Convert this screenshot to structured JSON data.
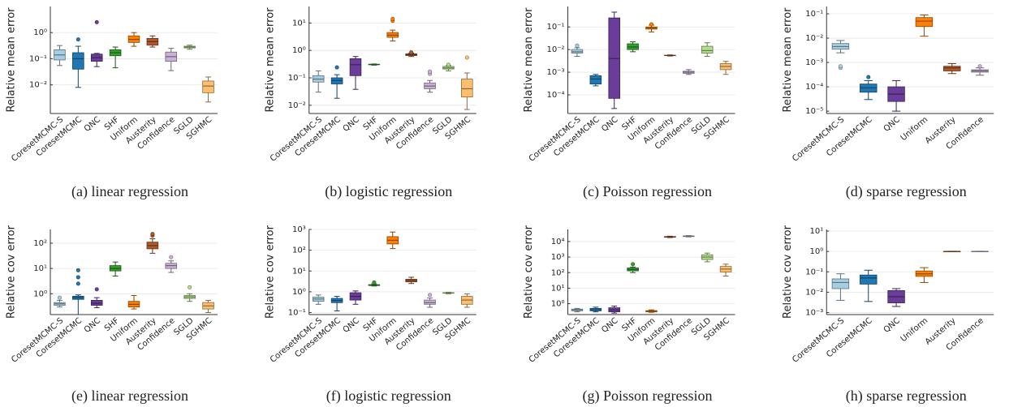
{
  "chart_data": [
    {
      "type": "box",
      "caption": "(a) linear regression",
      "ylabel": "Relative mean error",
      "log_y": true,
      "grid": true,
      "categories": [
        "CoresetMCMC-S",
        "CoresetMCMC",
        "QNC",
        "SHF",
        "Uniform",
        "Austerity",
        "Confidence",
        "SGLD",
        "SGHMC"
      ],
      "colors": [
        "#a6cee3",
        "#1f78b4",
        "#6a3d9a",
        "#33a02c",
        "#ff7f00",
        "#b15928",
        "#cab2d6",
        "#b2df8a",
        "#fdbf6f"
      ],
      "ylim": [
        0.0008,
        10
      ],
      "yticks": [
        {
          "value": 0.01,
          "label": "10⁻²"
        },
        {
          "value": 0.1,
          "label": "10⁻¹"
        },
        {
          "value": 1,
          "label": "10⁰"
        }
      ],
      "boxes": [
        {
          "whislo": 0.055,
          "q1": 0.09,
          "med": 0.14,
          "q3": 0.22,
          "whishi": 0.32,
          "fliers": []
        },
        {
          "whislo": 0.008,
          "q1": 0.04,
          "med": 0.1,
          "q3": 0.17,
          "whishi": 0.3,
          "fliers": [
            0.55
          ]
        },
        {
          "whislo": 0.05,
          "q1": 0.08,
          "med": 0.11,
          "q3": 0.15,
          "whishi": 0.16,
          "fliers": [
            2.5
          ]
        },
        {
          "whislo": 0.045,
          "q1": 0.13,
          "med": 0.17,
          "q3": 0.22,
          "whishi": 0.28,
          "fliers": []
        },
        {
          "whislo": 0.3,
          "q1": 0.42,
          "med": 0.55,
          "q3": 0.75,
          "whishi": 1.0,
          "fliers": []
        },
        {
          "whislo": 0.28,
          "q1": 0.33,
          "med": 0.45,
          "q3": 0.6,
          "whishi": 0.75,
          "fliers": []
        },
        {
          "whislo": 0.035,
          "q1": 0.08,
          "med": 0.12,
          "q3": 0.18,
          "whishi": 0.25,
          "fliers": []
        },
        {
          "whislo": 0.23,
          "q1": 0.26,
          "med": 0.28,
          "q3": 0.3,
          "whishi": 0.33,
          "fliers": []
        },
        {
          "whislo": 0.0022,
          "q1": 0.005,
          "med": 0.009,
          "q3": 0.014,
          "whishi": 0.02,
          "fliers": []
        }
      ]
    },
    {
      "type": "box",
      "caption": "(b) logistic regression",
      "ylabel": "Relative mean error",
      "log_y": true,
      "grid": true,
      "categories": [
        "CoresetMCMC-S",
        "CoresetMCMC",
        "QNC",
        "SHF",
        "Uniform",
        "Austerity",
        "Confidence",
        "SGLD",
        "SGHMC"
      ],
      "colors": [
        "#a6cee3",
        "#1f78b4",
        "#6a3d9a",
        "#33a02c",
        "#ff7f00",
        "#b15928",
        "#cab2d6",
        "#b2df8a",
        "#fdbf6f"
      ],
      "ylim": [
        0.005,
        40
      ],
      "yticks": [
        {
          "value": 0.01,
          "label": "10⁻²"
        },
        {
          "value": 0.1,
          "label": "10⁻¹"
        },
        {
          "value": 1,
          "label": "10⁰"
        },
        {
          "value": 10,
          "label": "10¹"
        }
      ],
      "boxes": [
        {
          "whislo": 0.03,
          "q1": 0.07,
          "med": 0.09,
          "q3": 0.12,
          "whishi": 0.18,
          "fliers": []
        },
        {
          "whislo": 0.018,
          "q1": 0.06,
          "med": 0.08,
          "q3": 0.1,
          "whishi": 0.13,
          "fliers": [
            0.24
          ]
        },
        {
          "whislo": 0.038,
          "q1": 0.12,
          "med": 0.3,
          "q3": 0.5,
          "whishi": 0.6,
          "fliers": []
        },
        {
          "whislo": 0.29,
          "q1": 0.3,
          "med": 0.31,
          "q3": 0.31,
          "whishi": 0.32,
          "fliers": []
        },
        {
          "whislo": 2.2,
          "q1": 3.0,
          "med": 3.6,
          "q3": 4.5,
          "whishi": 5.5,
          "fliers": [
            12,
            14
          ]
        },
        {
          "whislo": 0.6,
          "q1": 0.65,
          "med": 0.7,
          "q3": 0.75,
          "whishi": 0.8,
          "fliers": [
            0.85
          ]
        },
        {
          "whislo": 0.03,
          "q1": 0.04,
          "med": 0.05,
          "q3": 0.065,
          "whishi": 0.08,
          "fliers": [
            0.14,
            0.17
          ]
        },
        {
          "whislo": 0.18,
          "q1": 0.21,
          "med": 0.23,
          "q3": 0.26,
          "whishi": 0.28,
          "fliers": [
            0.3
          ]
        },
        {
          "whislo": 0.007,
          "q1": 0.02,
          "med": 0.04,
          "q3": 0.09,
          "whishi": 0.15,
          "fliers": [
            0.55
          ]
        }
      ]
    },
    {
      "type": "box",
      "caption": "(c) Poisson regression",
      "ylabel": "Relative mean error",
      "log_y": true,
      "grid": true,
      "categories": [
        "CoresetMCMC-S",
        "CoresetMCMC",
        "QNC",
        "SHF",
        "Uniform",
        "Austerity",
        "Confidence",
        "SGLD",
        "SGHMC"
      ],
      "colors": [
        "#a6cee3",
        "#1f78b4",
        "#6a3d9a",
        "#33a02c",
        "#ff7f00",
        "#b15928",
        "#cab2d6",
        "#b2df8a",
        "#fdbf6f"
      ],
      "ylim": [
        1.5e-05,
        0.8
      ],
      "yticks": [
        {
          "value": 0.0001,
          "label": "10⁻⁴"
        },
        {
          "value": 0.001,
          "label": "10⁻³"
        },
        {
          "value": 0.01,
          "label": "10⁻²"
        },
        {
          "value": 0.1,
          "label": "10⁻¹"
        }
      ],
      "boxes": [
        {
          "whislo": 0.005,
          "q1": 0.007,
          "med": 0.008,
          "q3": 0.01,
          "whishi": 0.012,
          "fliers": [
            0.015
          ]
        },
        {
          "whislo": 0.00025,
          "q1": 0.0003,
          "med": 0.0005,
          "q3": 0.0007,
          "whishi": 0.0008,
          "fliers": []
        },
        {
          "whislo": 2.5e-05,
          "q1": 7e-05,
          "med": 0.004,
          "q3": 0.25,
          "whishi": 0.45,
          "fliers": []
        },
        {
          "whislo": 0.008,
          "q1": 0.01,
          "med": 0.013,
          "q3": 0.018,
          "whishi": 0.022,
          "fliers": []
        },
        {
          "whislo": 0.06,
          "q1": 0.08,
          "med": 0.09,
          "q3": 0.1,
          "whishi": 0.12,
          "fliers": [
            0.13
          ]
        },
        {
          "whislo": 0.0052,
          "q1": 0.0054,
          "med": 0.0055,
          "q3": 0.0056,
          "whishi": 0.0058,
          "fliers": []
        },
        {
          "whislo": 0.0008,
          "q1": 0.0009,
          "med": 0.001,
          "q3": 0.0011,
          "whishi": 0.0013,
          "fliers": []
        },
        {
          "whislo": 0.005,
          "q1": 0.007,
          "med": 0.009,
          "q3": 0.014,
          "whishi": 0.02,
          "fliers": []
        },
        {
          "whislo": 0.0008,
          "q1": 0.0013,
          "med": 0.0018,
          "q3": 0.0024,
          "whishi": 0.003,
          "fliers": []
        }
      ]
    },
    {
      "type": "box",
      "caption": "(d) sparse regression",
      "ylabel": "Relative mean error",
      "log_y": true,
      "grid": true,
      "categories": [
        "CoresetMCMC-S",
        "CoresetMCMC",
        "QNC",
        "Uniform",
        "Austerity",
        "Confidence"
      ],
      "colors": [
        "#a6cee3",
        "#1f78b4",
        "#6a3d9a",
        "#ff7f00",
        "#b15928",
        "#cab2d6"
      ],
      "ylim": [
        8e-06,
        0.2
      ],
      "yticks": [
        {
          "value": 1e-05,
          "label": "10⁻⁵"
        },
        {
          "value": 0.0001,
          "label": "10⁻⁴"
        },
        {
          "value": 0.001,
          "label": "10⁻³"
        },
        {
          "value": 0.01,
          "label": "10⁻²"
        },
        {
          "value": 0.1,
          "label": "10⁻¹"
        }
      ],
      "boxes": [
        {
          "whislo": 0.0025,
          "q1": 0.0035,
          "med": 0.0045,
          "q3": 0.006,
          "whishi": 0.008,
          "fliers": [
            0.0006,
            0.0007
          ]
        },
        {
          "whislo": 3e-05,
          "q1": 6e-05,
          "med": 9e-05,
          "q3": 0.00013,
          "whishi": 0.00018,
          "fliers": [
            0.00025
          ]
        },
        {
          "whislo": 1e-05,
          "q1": 2.5e-05,
          "med": 5e-05,
          "q3": 0.0001,
          "whishi": 0.00018,
          "fliers": []
        },
        {
          "whislo": 0.012,
          "q1": 0.03,
          "med": 0.05,
          "q3": 0.07,
          "whishi": 0.09,
          "fliers": []
        },
        {
          "whislo": 0.00035,
          "q1": 0.00045,
          "med": 0.0006,
          "q3": 0.0007,
          "whishi": 0.0009,
          "fliers": []
        },
        {
          "whislo": 0.0003,
          "q1": 0.0004,
          "med": 0.00045,
          "q3": 0.0005,
          "whishi": 0.0006,
          "fliers": [
            0.0007
          ]
        }
      ]
    },
    {
      "type": "box",
      "caption": "(e) linear regression",
      "ylabel": "Relative cov error",
      "log_y": true,
      "grid": true,
      "categories": [
        "CoresetMCMC-S",
        "CoresetMCMC",
        "QNC",
        "SHF",
        "Uniform",
        "Austerity",
        "Confidence",
        "SGLD",
        "SGHMC"
      ],
      "colors": [
        "#a6cee3",
        "#1f78b4",
        "#6a3d9a",
        "#33a02c",
        "#ff7f00",
        "#b15928",
        "#cab2d6",
        "#b2df8a",
        "#fdbf6f"
      ],
      "ylim": [
        0.15,
        350
      ],
      "yticks": [
        {
          "value": 1,
          "label": "10⁰"
        },
        {
          "value": 10,
          "label": "10¹"
        },
        {
          "value": 100,
          "label": "10²"
        }
      ],
      "boxes": [
        {
          "whislo": 0.3,
          "q1": 0.35,
          "med": 0.4,
          "q3": 0.45,
          "whishi": 0.55,
          "fliers": [
            0.7
          ]
        },
        {
          "whislo": 0.15,
          "q1": 0.6,
          "med": 0.7,
          "q3": 0.8,
          "whishi": 0.9,
          "fliers": [
            2.5,
            4.5,
            8.5
          ]
        },
        {
          "whislo": 0.28,
          "q1": 0.35,
          "med": 0.42,
          "q3": 0.55,
          "whishi": 0.7,
          "fliers": [
            1.5
          ]
        },
        {
          "whislo": 5,
          "q1": 8,
          "med": 10,
          "q3": 13,
          "whishi": 18,
          "fliers": []
        },
        {
          "whislo": 0.25,
          "q1": 0.3,
          "med": 0.38,
          "q3": 0.5,
          "whishi": 0.85,
          "fliers": []
        },
        {
          "whislo": 40,
          "q1": 60,
          "med": 80,
          "q3": 110,
          "whishi": 150,
          "fliers": [
            200,
            230
          ]
        },
        {
          "whislo": 7,
          "q1": 10,
          "med": 13,
          "q3": 16,
          "whishi": 20,
          "fliers": [
            28
          ]
        },
        {
          "whislo": 0.5,
          "q1": 0.65,
          "med": 0.75,
          "q3": 0.85,
          "whishi": 1.0,
          "fliers": [
            1.8
          ]
        },
        {
          "whislo": 0.18,
          "q1": 0.25,
          "med": 0.33,
          "q3": 0.45,
          "whishi": 0.55,
          "fliers": []
        }
      ]
    },
    {
      "type": "box",
      "caption": "(f) logistic regression",
      "ylabel": "Relative cov error",
      "log_y": true,
      "grid": true,
      "categories": [
        "CoresetMCMC-S",
        "CoresetMCMC",
        "QNC",
        "SHF",
        "Uniform",
        "Austerity",
        "Confidence",
        "SGLD",
        "SGHMC"
      ],
      "colors": [
        "#a6cee3",
        "#1f78b4",
        "#6a3d9a",
        "#33a02c",
        "#ff7f00",
        "#b15928",
        "#cab2d6",
        "#b2df8a",
        "#fdbf6f"
      ],
      "ylim": [
        0.08,
        1000
      ],
      "yticks": [
        {
          "value": 0.1,
          "label": "10⁻¹"
        },
        {
          "value": 1,
          "label": "10⁰"
        },
        {
          "value": 10,
          "label": "10¹"
        },
        {
          "value": 100,
          "label": "10²"
        },
        {
          "value": 1000,
          "label": "10³"
        }
      ],
      "boxes": [
        {
          "whislo": 0.25,
          "q1": 0.35,
          "med": 0.45,
          "q3": 0.55,
          "whishi": 0.7,
          "fliers": []
        },
        {
          "whislo": 0.12,
          "q1": 0.3,
          "med": 0.38,
          "q3": 0.48,
          "whishi": 0.6,
          "fliers": []
        },
        {
          "whislo": 0.25,
          "q1": 0.4,
          "med": 0.6,
          "q3": 0.9,
          "whishi": 1.1,
          "fliers": []
        },
        {
          "whislo": 1.9,
          "q1": 2.0,
          "med": 2.1,
          "q3": 2.2,
          "whishi": 2.4,
          "fliers": [
            2.8
          ]
        },
        {
          "whislo": 120,
          "q1": 200,
          "med": 300,
          "q3": 450,
          "whishi": 750,
          "fliers": []
        },
        {
          "whislo": 2.5,
          "q1": 3.0,
          "med": 3.5,
          "q3": 4.0,
          "whishi": 5.0,
          "fliers": []
        },
        {
          "whislo": 0.18,
          "q1": 0.25,
          "med": 0.3,
          "q3": 0.4,
          "whishi": 0.5,
          "fliers": [
            0.7
          ]
        },
        {
          "whislo": 0.8,
          "q1": 0.85,
          "med": 0.88,
          "q3": 0.9,
          "whishi": 0.95,
          "fliers": []
        },
        {
          "whislo": 0.18,
          "q1": 0.25,
          "med": 0.4,
          "q3": 0.6,
          "whishi": 0.8,
          "fliers": []
        }
      ]
    },
    {
      "type": "box",
      "caption": "(g) Poisson regression",
      "ylabel": "Relative cov error",
      "log_y": true,
      "grid": true,
      "categories": [
        "CoresetMCMC-S",
        "CoresetMCMC",
        "QNC",
        "SHF",
        "Uniform",
        "Austerity",
        "Confidence",
        "SGLD",
        "SGHMC"
      ],
      "colors": [
        "#a6cee3",
        "#1f78b4",
        "#6a3d9a",
        "#33a02c",
        "#ff7f00",
        "#b15928",
        "#cab2d6",
        "#b2df8a",
        "#fdbf6f"
      ],
      "ylim": [
        0.2,
        60000
      ],
      "yticks": [
        {
          "value": 1,
          "label": "10⁰"
        },
        {
          "value": 10,
          "label": "10¹"
        },
        {
          "value": 100,
          "label": "10²"
        },
        {
          "value": 1000,
          "label": "10³"
        },
        {
          "value": 10000,
          "label": "10⁴"
        }
      ],
      "boxes": [
        {
          "whislo": 0.3,
          "q1": 0.35,
          "med": 0.4,
          "q3": 0.45,
          "whishi": 0.5,
          "fliers": []
        },
        {
          "whislo": 0.3,
          "q1": 0.35,
          "med": 0.4,
          "q3": 0.5,
          "whishi": 0.6,
          "fliers": []
        },
        {
          "whislo": 0.25,
          "q1": 0.3,
          "med": 0.4,
          "q3": 0.55,
          "whishi": 0.7,
          "fliers": []
        },
        {
          "whislo": 100,
          "q1": 130,
          "med": 160,
          "q3": 200,
          "whishi": 230,
          "fliers": [
            350
          ]
        },
        {
          "whislo": 0.28,
          "q1": 0.3,
          "med": 0.33,
          "q3": 0.36,
          "whishi": 0.4,
          "fliers": []
        },
        {
          "whislo": 18000,
          "q1": 19000,
          "med": 20000,
          "q3": 21000,
          "whishi": 22000,
          "fliers": []
        },
        {
          "whislo": 20000,
          "q1": 21000,
          "med": 22000,
          "q3": 23000,
          "whishi": 24000,
          "fliers": []
        },
        {
          "whislo": 500,
          "q1": 700,
          "med": 1000,
          "q3": 1400,
          "whishi": 1800,
          "fliers": []
        },
        {
          "whislo": 60,
          "q1": 110,
          "med": 170,
          "q3": 250,
          "whishi": 350,
          "fliers": []
        }
      ]
    },
    {
      "type": "box",
      "caption": "(h) sparse regression",
      "ylabel": "Relative cov error",
      "log_y": true,
      "grid": true,
      "categories": [
        "CoresetMCMC-S",
        "CoresetMCMC",
        "QNC",
        "Uniform",
        "Austerity",
        "Confidence"
      ],
      "colors": [
        "#a6cee3",
        "#1f78b4",
        "#6a3d9a",
        "#ff7f00",
        "#b15928",
        "#cab2d6"
      ],
      "ylim": [
        0.0008,
        12
      ],
      "yticks": [
        {
          "value": 0.001,
          "label": "10⁻³"
        },
        {
          "value": 0.01,
          "label": "10⁻²"
        },
        {
          "value": 0.1,
          "label": "10⁻¹"
        },
        {
          "value": 1,
          "label": "10⁰"
        },
        {
          "value": 10,
          "label": "10¹"
        }
      ],
      "boxes": [
        {
          "whislo": 0.004,
          "q1": 0.015,
          "med": 0.03,
          "q3": 0.045,
          "whishi": 0.08,
          "fliers": []
        },
        {
          "whislo": 0.0035,
          "q1": 0.025,
          "med": 0.05,
          "q3": 0.07,
          "whishi": 0.12,
          "fliers": []
        },
        {
          "whislo": 0.002,
          "q1": 0.003,
          "med": 0.006,
          "q3": 0.012,
          "whishi": 0.015,
          "fliers": []
        },
        {
          "whislo": 0.03,
          "q1": 0.06,
          "med": 0.08,
          "q3": 0.11,
          "whishi": 0.16,
          "fliers": []
        },
        {
          "whislo": 0.98,
          "q1": 0.99,
          "med": 1.0,
          "q3": 1.01,
          "whishi": 1.02,
          "fliers": []
        },
        {
          "whislo": 0.98,
          "q1": 0.99,
          "med": 1.0,
          "q3": 1.01,
          "whishi": 1.02,
          "fliers": []
        }
      ]
    }
  ]
}
